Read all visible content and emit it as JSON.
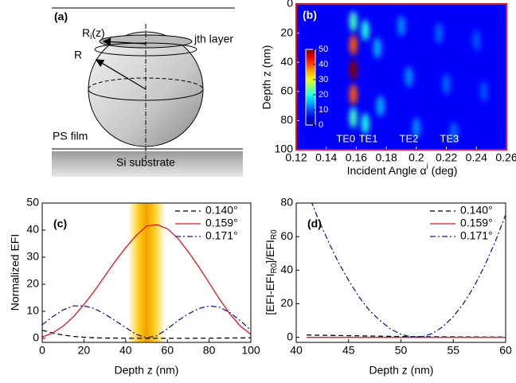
{
  "diagram": {
    "label": "(a)",
    "radius_layer_label": [
      "R",
      "i",
      "(z)"
    ],
    "layer_label": "jth layer",
    "radius_label": "R",
    "film_label": "PS film",
    "substrate_label": "Si substrate"
  },
  "chart_data": [
    {
      "type": "heatmap",
      "label": "(b)",
      "xlabel": [
        "Incident Angle α",
        "i",
        " (deg)"
      ],
      "ylabel": "Depth z (nm)",
      "xlim": [
        0.12,
        0.26
      ],
      "xticks": [
        0.12,
        0.14,
        0.16,
        0.18,
        0.2,
        0.22,
        0.24,
        0.26
      ],
      "ylim": [
        100,
        0
      ],
      "yticks": [
        0,
        20,
        40,
        60,
        80,
        100
      ],
      "clim": [
        0,
        50
      ],
      "cticks": [
        0,
        10,
        20,
        30,
        40,
        50
      ],
      "spots": [
        {
          "x": 0.158,
          "y": 12,
          "value": 18
        },
        {
          "x": 0.158,
          "y": 28,
          "value": 38
        },
        {
          "x": 0.158,
          "y": 45,
          "value": 50
        },
        {
          "x": 0.158,
          "y": 62,
          "value": 38
        },
        {
          "x": 0.158,
          "y": 78,
          "value": 18
        },
        {
          "x": 0.166,
          "y": 18,
          "value": 16
        },
        {
          "x": 0.166,
          "y": 82,
          "value": 16
        },
        {
          "x": 0.174,
          "y": 30,
          "value": 10
        },
        {
          "x": 0.176,
          "y": 70,
          "value": 10
        },
        {
          "x": 0.19,
          "y": 15,
          "value": 8
        },
        {
          "x": 0.195,
          "y": 50,
          "value": 8
        },
        {
          "x": 0.2,
          "y": 85,
          "value": 8
        },
        {
          "x": 0.215,
          "y": 20,
          "value": 6
        },
        {
          "x": 0.22,
          "y": 55,
          "value": 6
        },
        {
          "x": 0.225,
          "y": 88,
          "value": 6
        },
        {
          "x": 0.24,
          "y": 25,
          "value": 5
        },
        {
          "x": 0.245,
          "y": 60,
          "value": 5
        }
      ],
      "annotations": [
        {
          "text": "TE0",
          "x": 0.153,
          "y": 93
        },
        {
          "text": "TE1",
          "x": 0.168,
          "y": 93
        },
        {
          "text": "TE2",
          "x": 0.195,
          "y": 93
        },
        {
          "text": "TE3",
          "x": 0.222,
          "y": 93
        }
      ]
    },
    {
      "type": "line",
      "label": "(c)",
      "xlabel": "Depth z (nm)",
      "ylabel": "Normalized EFI",
      "xlim": [
        0,
        100
      ],
      "xticks": [
        0,
        20,
        40,
        60,
        80,
        100
      ],
      "ylim": [
        -1.5,
        50
      ],
      "yticks": [
        0,
        10,
        20,
        30,
        40,
        50
      ],
      "band": [
        41,
        59
      ],
      "x": [
        0,
        5,
        10,
        15,
        20,
        25,
        30,
        35,
        40,
        45,
        50,
        55,
        60,
        65,
        70,
        75,
        80,
        85,
        90,
        95,
        100
      ],
      "series": [
        {
          "name": "0.140°",
          "color": "#000000",
          "dash": "6,4",
          "values": [
            3,
            2,
            1.2,
            0.7,
            0.4,
            0.2,
            0.1,
            0.1,
            0.05,
            0,
            0,
            0,
            0,
            0,
            0,
            0.05,
            0.05,
            0.1,
            0.1,
            0.15,
            0.2
          ]
        },
        {
          "name": "0.159°",
          "color": "#e8141c",
          "dash": "none",
          "values": [
            0.5,
            2,
            4.5,
            8,
            12.5,
            17.5,
            23,
            28.5,
            33.5,
            38,
            41.5,
            42,
            40.5,
            37,
            32,
            26.5,
            20.5,
            14.5,
            9,
            4.5,
            1.5
          ]
        },
        {
          "name": "0.171°",
          "color": "#1a1a9c",
          "dash": "7,3,2,3",
          "values": [
            5,
            8,
            10.5,
            12,
            12,
            11,
            9,
            6.5,
            4,
            1.5,
            0.2,
            1,
            3.5,
            6.5,
            9,
            11,
            12,
            11.5,
            9.5,
            6.5,
            3
          ]
        }
      ]
    },
    {
      "type": "line",
      "label": "(d)",
      "xlabel": "Depth z (nm)",
      "ylabel": [
        "[EFI-EFI",
        "R0",
        "]/EFI",
        "R0"
      ],
      "xlim": [
        40,
        60
      ],
      "xticks": [
        40,
        45,
        50,
        55,
        60
      ],
      "ylim": [
        -3,
        80
      ],
      "yticks": [
        0,
        20,
        40,
        60,
        80
      ],
      "x": [
        41,
        42,
        43,
        44,
        45,
        46,
        47,
        48,
        49,
        50,
        51,
        52,
        53,
        54,
        55,
        56,
        57,
        58,
        59,
        60
      ],
      "series": [
        {
          "name": "0.140°",
          "color": "#000000",
          "dash": "6,4",
          "values": [
            1.4,
            1.3,
            1.2,
            1.1,
            1,
            0.9,
            0.8,
            0.7,
            0.6,
            0.5,
            0.45,
            0.4,
            0.35,
            0.3,
            0.3,
            0.25,
            0.25,
            0.2,
            0.2,
            0.2
          ]
        },
        {
          "name": "0.159°",
          "color": "#e8141c",
          "dash": "none",
          "values": [
            0,
            0,
            0,
            0,
            0,
            0,
            0,
            0,
            0,
            0,
            0,
            0,
            0,
            0,
            0,
            0,
            0,
            0,
            0,
            0
          ]
        },
        {
          "name": "0.171°",
          "color": "#1a1a9c",
          "dash": "7,3,2,3",
          "values": [
            88,
            72,
            58,
            45,
            34,
            24,
            16,
            10,
            5,
            1.8,
            0.2,
            0.3,
            2.3,
            6.3,
            12.4,
            20.4,
            30.5,
            42.7,
            56.9,
            73
          ]
        }
      ]
    }
  ]
}
